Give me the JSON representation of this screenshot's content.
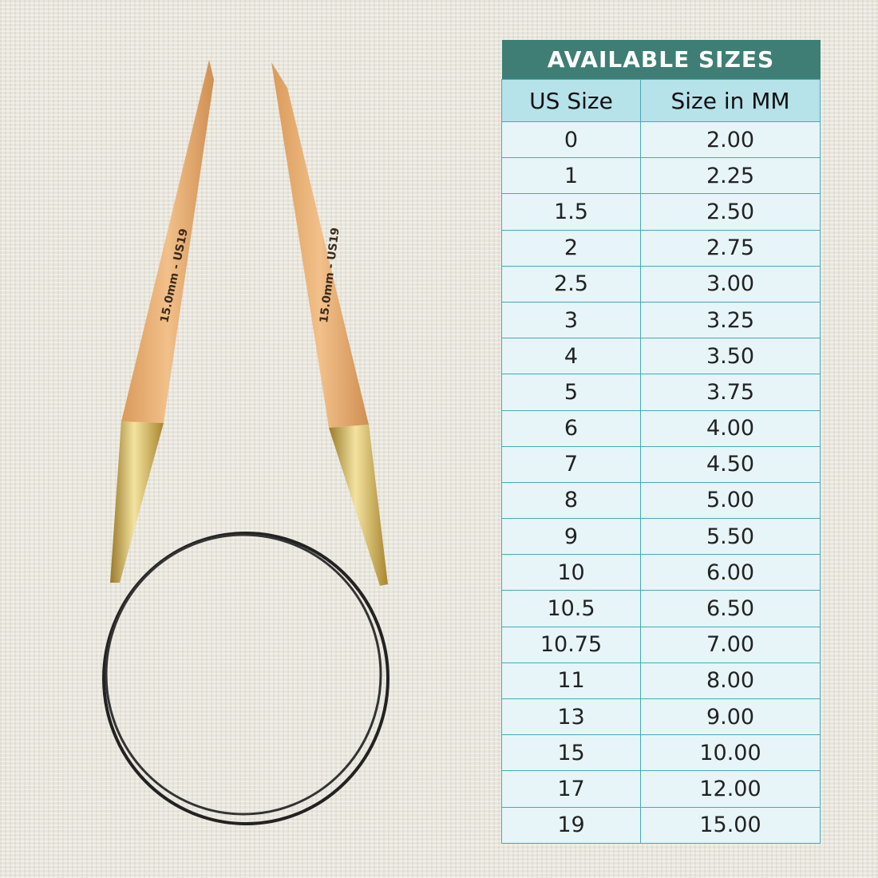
{
  "needle": {
    "imprint_left": "15.0mm - US19",
    "imprint_right": "15.0mm - US19"
  },
  "table": {
    "title": "AVAILABLE SIZES",
    "headers": [
      "US Size",
      "Size in MM"
    ],
    "rows": [
      [
        "0",
        "2.00"
      ],
      [
        "1",
        "2.25"
      ],
      [
        "1.5",
        "2.50"
      ],
      [
        "2",
        "2.75"
      ],
      [
        "2.5",
        "3.00"
      ],
      [
        "3",
        "3.25"
      ],
      [
        "4",
        "3.50"
      ],
      [
        "5",
        "3.75"
      ],
      [
        "6",
        "4.00"
      ],
      [
        "7",
        "4.50"
      ],
      [
        "8",
        "5.00"
      ],
      [
        "9",
        "5.50"
      ],
      [
        "10",
        "6.00"
      ],
      [
        "10.5",
        "6.50"
      ],
      [
        "10.75",
        "7.00"
      ],
      [
        "11",
        "8.00"
      ],
      [
        "13",
        "9.00"
      ],
      [
        "15",
        "10.00"
      ],
      [
        "17",
        "12.00"
      ],
      [
        "19",
        "15.00"
      ]
    ]
  },
  "colors": {
    "title_bg": "#3f7e74",
    "header_bg": "#b6e2ea",
    "cell_bg": "#e7f5f8",
    "border": "#45a9bb"
  }
}
